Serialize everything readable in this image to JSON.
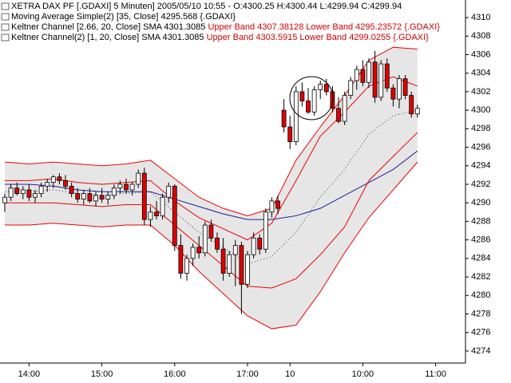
{
  "chart_data": {
    "type": "candlestick",
    "title": "XETRA DAX PF [.GDAXI]  5 Minuten] 2005/05/10 10:55 - O:4300.25 H:4300.44 L:4299.94 C:4299.94",
    "indicators": [
      {
        "text": "Moving Average Simple(2) [35, Close] 4295.568 {.GDAXI}"
      },
      {
        "text": "Keltner Channel [2.66, 20, Close] SMA 4301.3085",
        "bands": "Upper Band 4307.38128 Lower Band 4295.23572 {.GDAXI}"
      },
      {
        "text": "Keltner Channel(2) [1, 20, Close] SMA 4301.3085",
        "bands": "Upper Band 4303.5915 Lower Band 4299.0255 {.GDAXI}"
      }
    ],
    "xlim": [
      -0.79,
      75.92
    ],
    "xticks": [
      {
        "value": 4,
        "label": "14:00"
      },
      {
        "value": 16,
        "label": "15:00"
      },
      {
        "value": 28,
        "label": "16:00"
      },
      {
        "value": 40,
        "label": "17:00"
      },
      {
        "value": 47,
        "label": "10"
      },
      {
        "value": 59,
        "label": "10:00"
      },
      {
        "value": 71,
        "label": "11:00"
      }
    ],
    "ylim": [
      4272.7,
      4311.9
    ],
    "yticks": [
      4274,
      4276,
      4278,
      4280,
      4282,
      4284,
      4286,
      4288,
      4290,
      4292,
      4294,
      4296,
      4298,
      4300,
      4302,
      4304,
      4306,
      4308,
      4310
    ],
    "up_color": "#ffffff",
    "down_color": "#e00000",
    "band_fill": "#e6e6e6",
    "candles": {
      "open": [
        4290.0,
        4290.6,
        4291.6,
        4291.0,
        4291.4,
        4290.6,
        4291.0,
        4291.8,
        4292.2,
        4292.8,
        4292.4,
        4291.8,
        4291.0,
        4290.4,
        4291.0,
        4290.2,
        4290.8,
        4290.4,
        4290.8,
        4291.6,
        4292.0,
        4291.4,
        4292.0,
        4293.2,
        4288.2,
        4289.0,
        4288.6,
        4290.6,
        4291.8,
        4285.4,
        4282.4,
        4284.0,
        4285.2,
        4284.6,
        4287.6,
        4286.2,
        4285.0,
        4282.4,
        4284.4,
        4285.4,
        4281.2,
        4284.4,
        4286.2,
        4285.0,
        4289.0,
        4290.2,
        4300.0,
        4298.2,
        4296.6,
        4302.0,
        4301.0,
        4299.8,
        4302.2,
        4302.8,
        4302.0,
        4300.2,
        4298.8,
        4301.6,
        4303.2,
        4304.4,
        4303.0,
        4305.2,
        4301.4,
        4305.0,
        4302.4,
        4301.2,
        4303.4,
        4301.6,
        4299.6
      ],
      "high": [
        4291.0,
        4292.0,
        4292.2,
        4291.8,
        4292.0,
        4291.4,
        4292.2,
        4292.6,
        4293.0,
        4293.2,
        4293.0,
        4292.2,
        4291.6,
        4291.4,
        4291.6,
        4291.2,
        4291.6,
        4291.2,
        4292.0,
        4292.4,
        4292.6,
        4292.2,
        4293.6,
        4293.8,
        4289.6,
        4290.2,
        4291.0,
        4292.2,
        4292.0,
        4286.6,
        4284.4,
        4285.6,
        4286.4,
        4288.0,
        4288.2,
        4286.8,
        4286.2,
        4284.8,
        4286.0,
        4285.8,
        4284.8,
        4286.8,
        4286.6,
        4289.4,
        4290.6,
        4290.8,
        4301.2,
        4299.4,
        4302.6,
        4303.0,
        4302.4,
        4302.6,
        4303.2,
        4303.4,
        4302.6,
        4301.4,
        4302.0,
        4303.6,
        4304.8,
        4305.4,
        4305.6,
        4306.4,
        4305.4,
        4305.6,
        4302.8,
        4303.8,
        4303.8,
        4302.0,
        4300.6
      ],
      "low": [
        4289.0,
        4290.2,
        4290.8,
        4290.4,
        4290.2,
        4290.0,
        4290.6,
        4291.2,
        4291.6,
        4292.0,
        4291.4,
        4290.6,
        4290.0,
        4289.8,
        4290.0,
        4289.6,
        4290.0,
        4289.8,
        4290.4,
        4291.0,
        4291.0,
        4290.8,
        4291.6,
        4287.6,
        4287.4,
        4288.2,
        4288.2,
        4290.0,
        4284.8,
        4281.8,
        4281.6,
        4283.2,
        4284.0,
        4284.2,
        4285.8,
        4284.6,
        4281.6,
        4282.0,
        4281.0,
        4278.0,
        4280.8,
        4284.0,
        4284.4,
        4284.6,
        4288.4,
        4288.8,
        4297.6,
        4295.8,
        4296.2,
        4300.4,
        4299.6,
        4299.4,
        4301.2,
        4301.6,
        4299.8,
        4298.6,
        4298.4,
        4301.2,
        4302.2,
        4302.6,
        4302.4,
        4300.8,
        4301.0,
        4302.0,
        4300.4,
        4300.2,
        4301.2,
        4299.2,
        4299.2
      ],
      "close": [
        4290.6,
        4291.6,
        4291.0,
        4291.4,
        4290.6,
        4291.0,
        4291.8,
        4292.2,
        4292.8,
        4292.4,
        4291.8,
        4291.0,
        4290.4,
        4291.0,
        4290.2,
        4290.8,
        4290.4,
        4290.8,
        4291.6,
        4292.0,
        4291.4,
        4292.0,
        4293.2,
        4288.2,
        4289.0,
        4288.6,
        4290.6,
        4291.8,
        4285.4,
        4282.4,
        4284.0,
        4285.2,
        4284.6,
        4287.6,
        4286.2,
        4285.0,
        4282.4,
        4284.4,
        4285.4,
        4281.2,
        4284.4,
        4286.2,
        4285.0,
        4289.0,
        4290.2,
        4289.4,
        4298.2,
        4296.6,
        4302.0,
        4301.0,
        4299.8,
        4302.2,
        4302.8,
        4302.0,
        4300.2,
        4298.8,
        4301.6,
        4303.2,
        4304.4,
        4303.0,
        4305.2,
        4301.4,
        4305.0,
        4302.4,
        4301.2,
        4303.4,
        4301.6,
        4299.6,
        4300.2
      ]
    },
    "series": [
      {
        "color": "#1c1c9c",
        "style": "solid",
        "x": [
          0,
          4,
          8,
          12,
          16,
          20,
          24,
          28,
          32,
          36,
          40,
          44,
          48,
          52,
          56,
          60,
          64,
          68
        ],
        "values": [
          4292.0,
          4292.0,
          4291.8,
          4291.4,
          4291.2,
          4291.2,
          4291.2,
          4290.4,
          4289.6,
          4288.8,
          4288.2,
          4288.2,
          4288.6,
          4289.4,
          4290.8,
          4292.2,
          4293.6,
          4295.6
        ]
      },
      {
        "color": "#ee0000",
        "style": "solid",
        "x": [
          0,
          4,
          8,
          12,
          16,
          20,
          24,
          28,
          32,
          36,
          40,
          44,
          48,
          52,
          56,
          60,
          64,
          68
        ],
        "values": [
          4294.4,
          4294.2,
          4294.4,
          4294.2,
          4294.0,
          4294.2,
          4294.6,
          4292.6,
          4290.6,
          4289.4,
          4288.6,
          4289.4,
          4294.6,
          4298.2,
          4301.6,
          4305.4,
          4306.8,
          4306.6
        ]
      },
      {
        "color": "#ee0000",
        "style": "solid",
        "x": [
          0,
          4,
          8,
          12,
          16,
          20,
          24,
          28,
          32,
          36,
          40,
          44,
          48,
          52,
          56,
          60,
          64,
          68
        ],
        "values": [
          4287.6,
          4287.6,
          4287.8,
          4287.6,
          4287.4,
          4287.6,
          4287.6,
          4285.4,
          4282.6,
          4280.2,
          4277.8,
          4276.4,
          4276.8,
          4280.4,
          4284.6,
          4288.4,
          4291.4,
          4294.4
        ]
      },
      {
        "color": "#ee0000",
        "style": "solid",
        "x": [
          0,
          4,
          8,
          12,
          16,
          20,
          24,
          28,
          32,
          36,
          40,
          44,
          48,
          52,
          56,
          60,
          64,
          68
        ],
        "values": [
          4292.4,
          4292.4,
          4292.6,
          4292.2,
          4292.0,
          4292.2,
          4292.4,
          4290.2,
          4288.4,
          4287.2,
          4286.0,
          4287.8,
          4292.4,
          4297.2,
          4299.8,
          4302.6,
          4303.6,
          4302.6
        ]
      },
      {
        "color": "#ee0000",
        "style": "solid",
        "x": [
          0,
          4,
          8,
          12,
          16,
          20,
          24,
          28,
          32,
          36,
          40,
          44,
          48,
          52,
          56,
          60,
          64,
          68
        ],
        "values": [
          4290.0,
          4290.0,
          4290.0,
          4289.8,
          4289.6,
          4289.8,
          4289.8,
          4287.6,
          4285.4,
          4283.2,
          4281.0,
          4280.8,
          4281.8,
          4284.4,
          4287.4,
          4292.4,
          4295.0,
          4297.6
        ]
      },
      {
        "color": "#303050",
        "style": "dotted",
        "x": [
          0,
          4,
          8,
          12,
          16,
          20,
          24,
          28,
          32,
          36,
          40,
          44,
          48,
          52,
          56,
          60,
          64,
          68
        ],
        "values": [
          4291.2,
          4291.2,
          4291.4,
          4291.0,
          4290.8,
          4291.0,
          4291.2,
          4289.0,
          4286.8,
          4285.2,
          4283.4,
          4284.2,
          4286.8,
          4290.6,
          4293.6,
          4297.4,
          4299.4,
          4300.0
        ]
      }
    ]
  }
}
